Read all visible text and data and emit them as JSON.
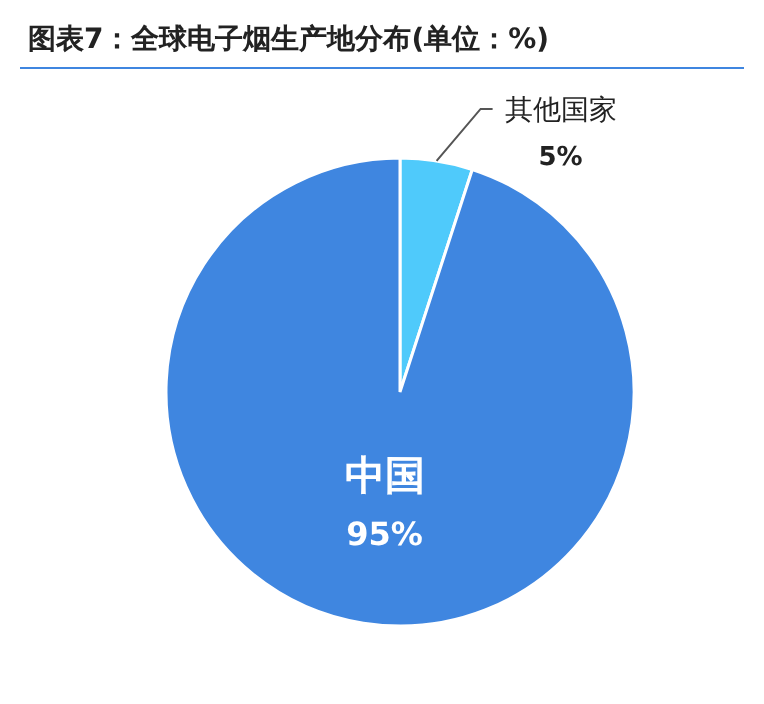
{
  "chart_data": {
    "type": "pie",
    "title": "图表7：全球电子烟生产地分布(单位：%)",
    "categories": [
      "其他国家",
      "中国"
    ],
    "values": [
      5,
      95
    ],
    "value_labels": [
      "5%",
      "95%"
    ],
    "colors": [
      "#4fcafb",
      "#3f86e0"
    ]
  }
}
